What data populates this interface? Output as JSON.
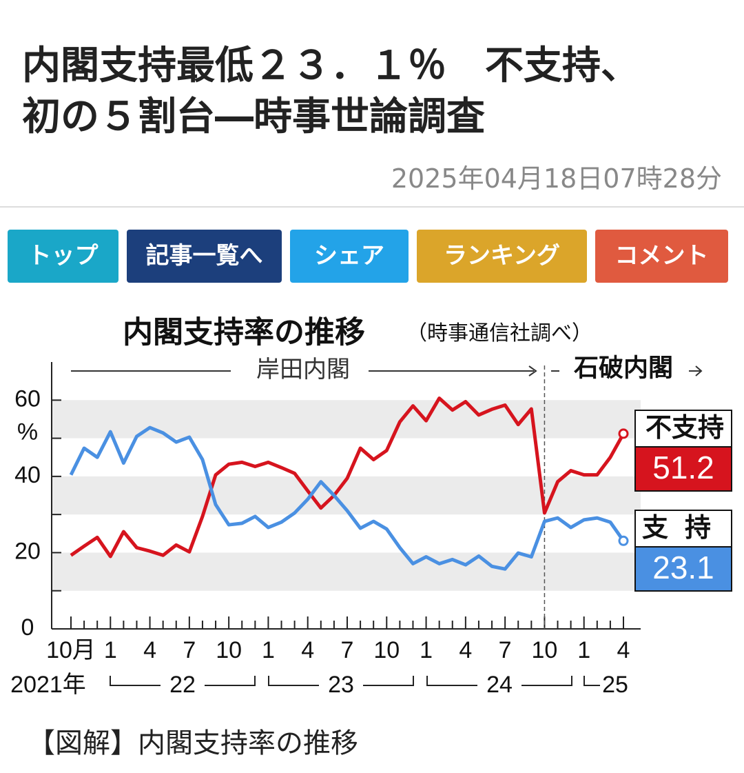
{
  "header": {
    "title_lines": [
      "内閣支持最低２３．１％　不支持、",
      "初の５割台―時事世論調査"
    ],
    "date": "2025年04月18日07時28分"
  },
  "nav": [
    "トップ",
    "記事一覧へ",
    "シェア",
    "ランキング",
    "コメント"
  ],
  "chart_data": {
    "type": "line",
    "title": "内閣支持率の推移",
    "subtitle": "（時事通信社調べ）",
    "annotations": [
      "岸田内閣",
      "石破内閣"
    ],
    "y_unit": "%",
    "categories": [
      "10月",
      null,
      null,
      "1",
      null,
      null,
      "4",
      null,
      null,
      "7",
      null,
      null,
      "10",
      null,
      null,
      "1",
      null,
      null,
      "4",
      null,
      null,
      "7",
      null,
      null,
      "10",
      null,
      null,
      "1",
      null,
      null,
      "4",
      null,
      null,
      "7",
      null,
      null,
      "10",
      null,
      null,
      "1",
      null,
      null,
      "4"
    ],
    "years": [
      "2021年",
      "22",
      "23",
      "24",
      "25"
    ],
    "ylim": [
      0,
      70
    ],
    "yticks": [
      0,
      20,
      40,
      60
    ],
    "series": [
      {
        "name": "不支持",
        "color": "#d6141e",
        "values": [
          19.3,
          21.7,
          24,
          19,
          25.5,
          21.3,
          20.4,
          19.3,
          22,
          20.2,
          29.5,
          40.4,
          43.2,
          43.7,
          42.6,
          43.7,
          42.3,
          40.8,
          36.2,
          31.7,
          35,
          39.5,
          47.4,
          44.4,
          46.8,
          54.3,
          58.5,
          54.6,
          60.5,
          57.4,
          59.6,
          56.1,
          57.6,
          58.7,
          53.6,
          57.7,
          30.4,
          38.6,
          41.5,
          40.4,
          40.4,
          45,
          51.2
        ]
      },
      {
        "name": "支持",
        "color": "#4a90e2",
        "values": [
          40.4,
          47.4,
          45,
          51.7,
          43.5,
          50.5,
          52.8,
          51.4,
          49,
          50.3,
          44.4,
          32.6,
          27.3,
          27.7,
          29.5,
          26.6,
          28,
          30.4,
          34,
          38.6,
          35,
          31,
          26.4,
          28.2,
          26.2,
          21.3,
          17.1,
          18.9,
          17.1,
          18.2,
          16.8,
          19.1,
          16.4,
          15.7,
          19.9,
          18.9,
          28.2,
          29.1,
          26.6,
          28.6,
          29.1,
          28,
          23.1
        ]
      }
    ]
  },
  "caption": "【図解】内閣支持率の推移"
}
